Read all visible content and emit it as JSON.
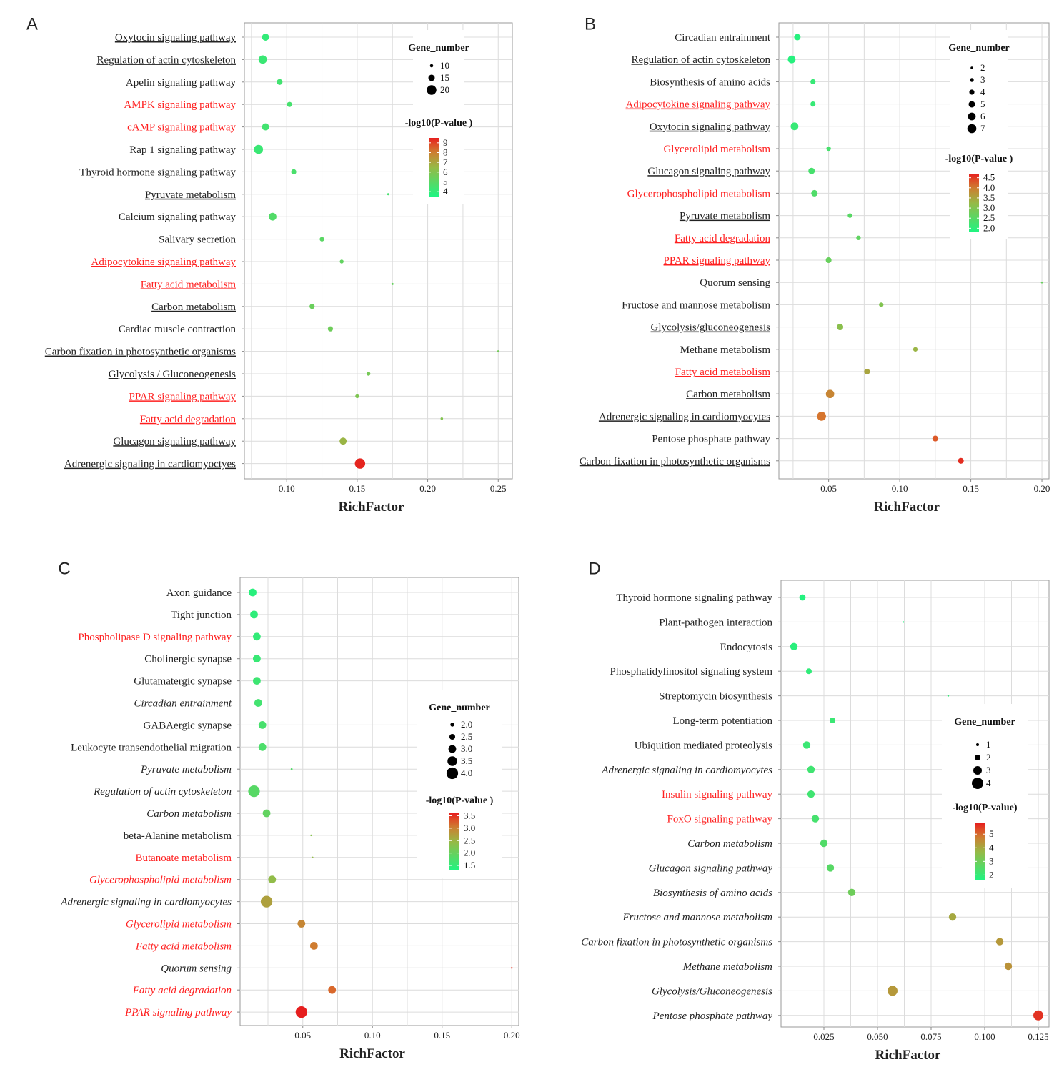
{
  "chart_data": [
    {
      "panel": "A",
      "type": "scatter",
      "xlabel": "RichFactor",
      "xlim": [
        0.07,
        0.26
      ],
      "xticks": [
        0.1,
        0.15,
        0.2,
        0.25
      ],
      "xtick_labels": [
        "0.10",
        "0.15",
        "0.20",
        "0.25"
      ],
      "size_legend_title": "Gene_number",
      "size_legend": [
        10,
        15,
        20
      ],
      "color_legend_title": "-log10(P-value )",
      "color_range": [
        3.5,
        9.5
      ],
      "color_ticks": [
        9,
        8,
        7,
        6,
        5,
        4
      ],
      "points": [
        {
          "label": "Oxytocin signaling pathway",
          "x": 0.085,
          "genes": 16,
          "p": 4.0,
          "red": false,
          "underline": true,
          "italic": false
        },
        {
          "label": "Regulation of actin cytoskeleton",
          "x": 0.083,
          "genes": 18,
          "p": 4.2,
          "red": false,
          "underline": true,
          "italic": false
        },
        {
          "label": "Apelin signaling pathway",
          "x": 0.095,
          "genes": 14,
          "p": 4.4,
          "red": false,
          "underline": false,
          "italic": false
        },
        {
          "label": "AMPK signaling pathway",
          "x": 0.102,
          "genes": 13,
          "p": 4.5,
          "red": true,
          "underline": false,
          "italic": false
        },
        {
          "label": "cAMP signaling pathway",
          "x": 0.085,
          "genes": 16,
          "p": 4.4,
          "red": true,
          "underline": false,
          "italic": false
        },
        {
          "label": "Rap 1 signaling pathway",
          "x": 0.08,
          "genes": 19,
          "p": 4.2,
          "red": false,
          "underline": false,
          "italic": false
        },
        {
          "label": "Thyroid hormone signaling pathway",
          "x": 0.105,
          "genes": 13,
          "p": 4.6,
          "red": false,
          "underline": false,
          "italic": false
        },
        {
          "label": "Pyruvate metabolism",
          "x": 0.172,
          "genes": 8,
          "p": 4.5,
          "red": false,
          "underline": true,
          "italic": false
        },
        {
          "label": "Calcium signaling pathway",
          "x": 0.09,
          "genes": 17,
          "p": 4.8,
          "red": false,
          "underline": false,
          "italic": false
        },
        {
          "label": "Salivary secretion",
          "x": 0.125,
          "genes": 12,
          "p": 5.0,
          "red": false,
          "underline": false,
          "italic": false
        },
        {
          "label": "Adipocytokine signaling pathway",
          "x": 0.139,
          "genes": 11,
          "p": 5.2,
          "red": true,
          "underline": true,
          "italic": false
        },
        {
          "label": "Fatty acid metabolism",
          "x": 0.175,
          "genes": 8,
          "p": 5.3,
          "red": true,
          "underline": true,
          "italic": false
        },
        {
          "label": "Carbon metabolism",
          "x": 0.118,
          "genes": 13,
          "p": 5.4,
          "red": false,
          "underline": true,
          "italic": false
        },
        {
          "label": "Cardiac muscle contraction",
          "x": 0.131,
          "genes": 13,
          "p": 5.5,
          "red": false,
          "underline": false,
          "italic": false
        },
        {
          "label": "Carbon fixation in photosynthetic organisms",
          "x": 0.25,
          "genes": 6,
          "p": 5.6,
          "red": false,
          "underline": true,
          "italic": false
        },
        {
          "label": "Glycolysis / Gluconeogenesis",
          "x": 0.158,
          "genes": 11,
          "p": 5.7,
          "red": false,
          "underline": true,
          "italic": false
        },
        {
          "label": "PPAR signaling pathway",
          "x": 0.15,
          "genes": 11,
          "p": 5.9,
          "red": true,
          "underline": true,
          "italic": false
        },
        {
          "label": "Fatty acid degradation",
          "x": 0.21,
          "genes": 9,
          "p": 6.0,
          "red": true,
          "underline": true,
          "italic": false
        },
        {
          "label": "Glucagon signaling pathway",
          "x": 0.14,
          "genes": 16,
          "p": 6.6,
          "red": false,
          "underline": true,
          "italic": false
        },
        {
          "label": "Adrenergic signaling in cardiomyoctyes",
          "x": 0.152,
          "genes": 21,
          "p": 9.4,
          "red": false,
          "underline": true,
          "italic": false
        }
      ]
    },
    {
      "panel": "B",
      "type": "scatter",
      "xlabel": "RichFactor",
      "xlim": [
        0.015,
        0.205
      ],
      "xticks": [
        0.05,
        0.1,
        0.15,
        0.2
      ],
      "xtick_labels": [
        "0.05",
        "0.10",
        "0.15",
        "0.20"
      ],
      "size_legend_title": "Gene_number",
      "size_legend": [
        2,
        3,
        4,
        5,
        6,
        7
      ],
      "color_legend_title": "-log10(P-value )",
      "color_range": [
        1.8,
        4.7
      ],
      "color_ticks": [
        4.5,
        4.0,
        3.5,
        3.0,
        2.5,
        2.0
      ],
      "color_tick_labels": [
        "4.5",
        "4.0",
        "3.5",
        "3.0",
        "2.5",
        "2.0"
      ],
      "points": [
        {
          "label": "Circadian entrainment",
          "x": 0.028,
          "genes": 5,
          "p": 1.9,
          "red": false,
          "underline": false,
          "italic": false
        },
        {
          "label": "Regulation of actin cytoskeleton",
          "x": 0.024,
          "genes": 6,
          "p": 1.9,
          "red": false,
          "underline": true,
          "italic": false
        },
        {
          "label": "Biosynthesis of amino acids",
          "x": 0.039,
          "genes": 4,
          "p": 2.1,
          "red": false,
          "underline": false,
          "italic": false
        },
        {
          "label": "Adipocytokine signaling pathway",
          "x": 0.039,
          "genes": 4,
          "p": 2.1,
          "red": true,
          "underline": true,
          "italic": false
        },
        {
          "label": "Oxytocin signaling pathway",
          "x": 0.026,
          "genes": 6,
          "p": 2.1,
          "red": false,
          "underline": true,
          "italic": false
        },
        {
          "label": "Glycerolipid metabolism",
          "x": 0.05,
          "genes": 3.5,
          "p": 2.3,
          "red": true,
          "underline": false,
          "italic": false
        },
        {
          "label": "Glucagon signaling pathway",
          "x": 0.038,
          "genes": 5,
          "p": 2.3,
          "red": false,
          "underline": true,
          "italic": false
        },
        {
          "label": "Glycerophospholipid metabolism",
          "x": 0.04,
          "genes": 5,
          "p": 2.4,
          "red": true,
          "underline": false,
          "italic": false
        },
        {
          "label": "Pyruvate metabolism",
          "x": 0.065,
          "genes": 3.5,
          "p": 2.5,
          "red": false,
          "underline": true,
          "italic": false
        },
        {
          "label": "Fatty acid degradation",
          "x": 0.071,
          "genes": 3.5,
          "p": 2.6,
          "red": true,
          "underline": true,
          "italic": false
        },
        {
          "label": "PPAR signaling pathway",
          "x": 0.05,
          "genes": 4.5,
          "p": 2.7,
          "red": true,
          "underline": true,
          "italic": false
        },
        {
          "label": "Quorum sensing",
          "x": 0.2,
          "genes": 1.5,
          "p": 2.7,
          "red": false,
          "underline": false,
          "italic": false
        },
        {
          "label": "Fructose and mannose metabolism",
          "x": 0.087,
          "genes": 3.5,
          "p": 3.0,
          "red": false,
          "underline": false,
          "italic": false
        },
        {
          "label": "Glycolysis/gluconeogenesis",
          "x": 0.058,
          "genes": 5,
          "p": 3.1,
          "red": false,
          "underline": true,
          "italic": false
        },
        {
          "label": "Methane metabolism",
          "x": 0.111,
          "genes": 3.5,
          "p": 3.3,
          "red": false,
          "underline": false,
          "italic": false
        },
        {
          "label": "Fatty acid metabolism",
          "x": 0.077,
          "genes": 4.5,
          "p": 3.5,
          "red": true,
          "underline": true,
          "italic": false
        },
        {
          "label": "Carbon metabolism",
          "x": 0.051,
          "genes": 6.5,
          "p": 3.9,
          "red": false,
          "underline": true,
          "italic": false
        },
        {
          "label": "Adrenergic signaling in cardiomyocytes",
          "x": 0.045,
          "genes": 7,
          "p": 4.1,
          "red": false,
          "underline": true,
          "italic": false
        },
        {
          "label": "Pentose phosphate pathway",
          "x": 0.125,
          "genes": 4.5,
          "p": 4.3,
          "red": false,
          "underline": false,
          "italic": false
        },
        {
          "label": "Carbon fixation in photosynthetic organisms",
          "x": 0.143,
          "genes": 4.5,
          "p": 4.6,
          "red": false,
          "underline": true,
          "italic": false
        }
      ]
    },
    {
      "panel": "C",
      "type": "scatter",
      "xlabel": "RichFactor",
      "xlim": [
        0.005,
        0.205
      ],
      "xticks": [
        0.05,
        0.1,
        0.15,
        0.2
      ],
      "xtick_labels": [
        "0.05",
        "0.10",
        "0.15",
        "0.20"
      ],
      "size_legend_title": "Gene_number",
      "size_legend": [
        2.0,
        2.5,
        3.0,
        3.5,
        4.0
      ],
      "size_legend_labels": [
        "2.0",
        "2.5",
        "3.0",
        "3.5",
        "4.0"
      ],
      "color_legend_title": "-log10(P-value )",
      "color_range": [
        1.3,
        3.6
      ],
      "color_ticks": [
        3.5,
        3.0,
        2.5,
        2.0,
        1.5
      ],
      "color_tick_labels": [
        "3.5",
        "3.0",
        "2.5",
        "2.0",
        "1.5"
      ],
      "points": [
        {
          "label": "Axon guidance",
          "x": 0.014,
          "genes": 3,
          "p": 1.4,
          "red": false,
          "underline": false,
          "italic": false
        },
        {
          "label": "Tight junction",
          "x": 0.015,
          "genes": 3,
          "p": 1.45,
          "red": false,
          "underline": false,
          "italic": false
        },
        {
          "label": "Phospholipase D signaling pathway",
          "x": 0.017,
          "genes": 3,
          "p": 1.5,
          "red": true,
          "underline": false,
          "italic": false
        },
        {
          "label": "Cholinergic synapse",
          "x": 0.017,
          "genes": 3,
          "p": 1.55,
          "red": false,
          "underline": false,
          "italic": false
        },
        {
          "label": "Glutamatergic synapse",
          "x": 0.017,
          "genes": 3,
          "p": 1.6,
          "red": false,
          "underline": false,
          "italic": false
        },
        {
          "label": "Circadian entrainment",
          "x": 0.018,
          "genes": 3,
          "p": 1.65,
          "red": false,
          "underline": false,
          "italic": true
        },
        {
          "label": "GABAergic synapse",
          "x": 0.021,
          "genes": 3,
          "p": 1.7,
          "red": false,
          "underline": false,
          "italic": false
        },
        {
          "label": "Leukocyte transendothelial migration",
          "x": 0.021,
          "genes": 3,
          "p": 1.75,
          "red": false,
          "underline": false,
          "italic": false
        },
        {
          "label": "Pyruvate metabolism",
          "x": 0.042,
          "genes": 1.5,
          "p": 1.8,
          "red": false,
          "underline": false,
          "italic": true
        },
        {
          "label": "Regulation of actin cytoskeleton",
          "x": 0.015,
          "genes": 4,
          "p": 1.85,
          "red": false,
          "underline": false,
          "italic": true
        },
        {
          "label": "Carbon metabolism",
          "x": 0.024,
          "genes": 3,
          "p": 1.95,
          "red": false,
          "underline": false,
          "italic": true
        },
        {
          "label": "beta-Alanine metabolism",
          "x": 0.056,
          "genes": 1.3,
          "p": 2.3,
          "red": false,
          "underline": false,
          "italic": false
        },
        {
          "label": "Butanoate metabolism",
          "x": 0.057,
          "genes": 1.3,
          "p": 2.4,
          "red": true,
          "underline": false,
          "italic": false
        },
        {
          "label": "Glycerophospholipid metabolism",
          "x": 0.028,
          "genes": 3,
          "p": 2.4,
          "red": true,
          "underline": false,
          "italic": true
        },
        {
          "label": "Adrenergic signaling in cardiomyocytes",
          "x": 0.024,
          "genes": 4,
          "p": 2.7,
          "red": false,
          "underline": false,
          "italic": true
        },
        {
          "label": "Glycerolipid metabolism",
          "x": 0.049,
          "genes": 3,
          "p": 2.95,
          "red": true,
          "underline": false,
          "italic": true
        },
        {
          "label": "Fatty acid metabolism",
          "x": 0.058,
          "genes": 3,
          "p": 3.05,
          "red": true,
          "underline": false,
          "italic": true
        },
        {
          "label": "Quorum sensing",
          "x": 0.2,
          "genes": 1.3,
          "p": 3.5,
          "red": false,
          "underline": false,
          "italic": true
        },
        {
          "label": "Fatty acid degradation",
          "x": 0.071,
          "genes": 3,
          "p": 3.2,
          "red": true,
          "underline": false,
          "italic": true
        },
        {
          "label": "PPAR signaling pathway",
          "x": 0.049,
          "genes": 4,
          "p": 3.6,
          "red": true,
          "underline": false,
          "italic": true
        }
      ]
    },
    {
      "panel": "D",
      "type": "scatter",
      "xlabel": "RichFactor",
      "xlim": [
        0.005,
        0.13
      ],
      "xticks": [
        0.025,
        0.05,
        0.075,
        0.1,
        0.125
      ],
      "xtick_labels": [
        "0.025",
        "0.050",
        "0.075",
        "0.100",
        "0.125"
      ],
      "size_legend_title": "Gene_number",
      "size_legend": [
        1,
        2,
        3,
        4
      ],
      "color_legend_title": "-log10(P-value)",
      "color_range": [
        1.6,
        5.8
      ],
      "color_ticks": [
        5,
        4,
        3,
        2
      ],
      "points": [
        {
          "label": "Thyroid hormone signaling pathway",
          "x": 0.015,
          "genes": 2.2,
          "p": 1.7,
          "red": false,
          "underline": false,
          "italic": false
        },
        {
          "label": "Plant-pathogen interaction",
          "x": 0.062,
          "genes": 0.6,
          "p": 1.7,
          "red": false,
          "underline": false,
          "italic": false
        },
        {
          "label": "Endocytosis",
          "x": 0.011,
          "genes": 2.6,
          "p": 1.8,
          "red": false,
          "underline": false,
          "italic": false
        },
        {
          "label": "Phosphatidylinositol signaling system",
          "x": 0.018,
          "genes": 2,
          "p": 1.9,
          "red": false,
          "underline": false,
          "italic": false
        },
        {
          "label": "Streptomycin biosynthesis",
          "x": 0.083,
          "genes": 0.6,
          "p": 2.0,
          "red": false,
          "underline": false,
          "italic": false
        },
        {
          "label": "Long-term potentiation",
          "x": 0.029,
          "genes": 2,
          "p": 2.1,
          "red": false,
          "underline": false,
          "italic": false
        },
        {
          "label": "Ubiquition mediated proteolysis",
          "x": 0.017,
          "genes": 2.6,
          "p": 2.1,
          "red": false,
          "underline": false,
          "italic": false
        },
        {
          "label": "Adrenergic signaling in cardiomyocytes",
          "x": 0.019,
          "genes": 2.6,
          "p": 2.2,
          "red": false,
          "underline": false,
          "italic": true
        },
        {
          "label": "Insulin signaling pathway",
          "x": 0.019,
          "genes": 2.6,
          "p": 2.2,
          "red": true,
          "underline": false,
          "italic": false
        },
        {
          "label": "FoxO signaling pathway",
          "x": 0.021,
          "genes": 2.6,
          "p": 2.3,
          "red": true,
          "underline": false,
          "italic": false
        },
        {
          "label": "Carbon metabolism",
          "x": 0.025,
          "genes": 2.6,
          "p": 2.5,
          "red": false,
          "underline": false,
          "italic": true
        },
        {
          "label": "Glucagon signaling pathway",
          "x": 0.028,
          "genes": 2.6,
          "p": 2.6,
          "red": false,
          "underline": false,
          "italic": true
        },
        {
          "label": "Biosynthesis of amino acids",
          "x": 0.038,
          "genes": 2.6,
          "p": 3.0,
          "red": false,
          "underline": false,
          "italic": true
        },
        {
          "label": "Fructose and mannose metabolism",
          "x": 0.085,
          "genes": 2.6,
          "p": 4.0,
          "red": false,
          "underline": false,
          "italic": true
        },
        {
          "label": "Carbon fixation in photosynthetic organisms",
          "x": 0.107,
          "genes": 2.6,
          "p": 4.3,
          "red": false,
          "underline": false,
          "italic": true
        },
        {
          "label": "Methane metabolism",
          "x": 0.111,
          "genes": 2.6,
          "p": 4.4,
          "red": false,
          "underline": false,
          "italic": true
        },
        {
          "label": "Glycolysis/Gluconeogenesis",
          "x": 0.057,
          "genes": 3.5,
          "p": 4.3,
          "red": false,
          "underline": false,
          "italic": true
        },
        {
          "label": "Pentose phosphate pathway",
          "x": 0.125,
          "genes": 3.5,
          "p": 5.6,
          "red": false,
          "underline": false,
          "italic": true
        }
      ]
    }
  ]
}
